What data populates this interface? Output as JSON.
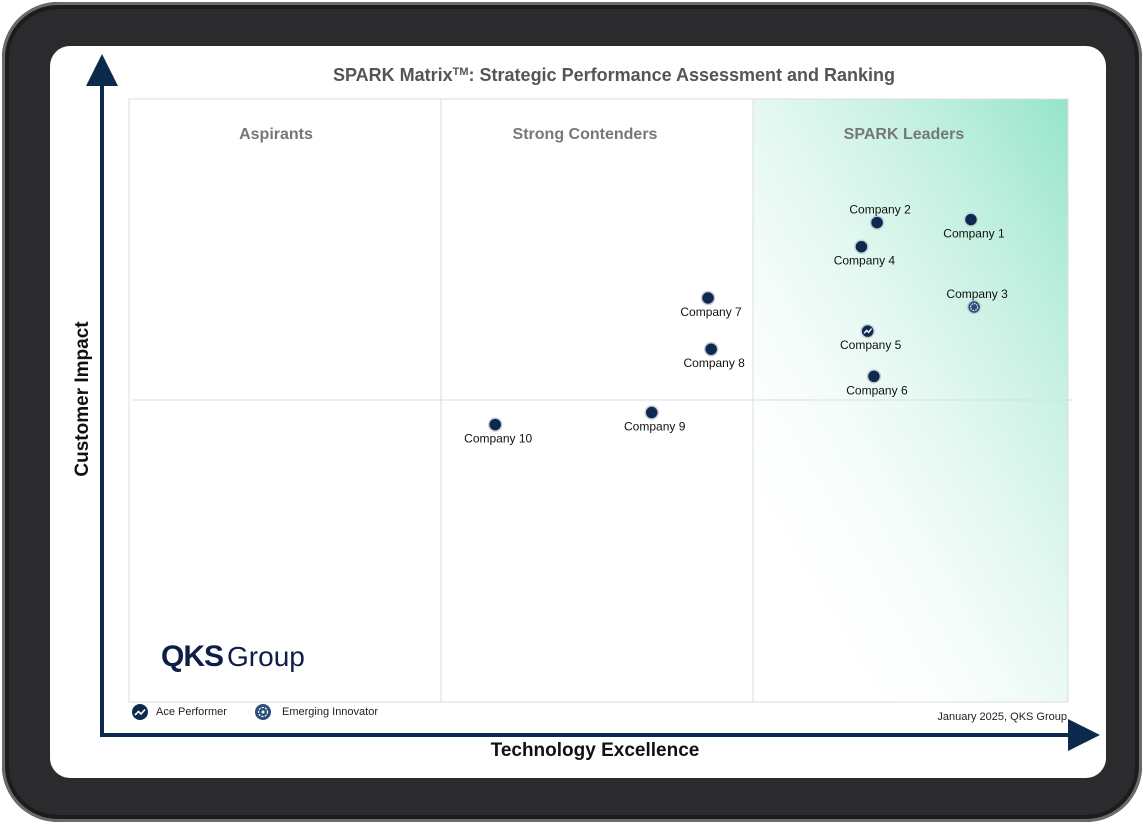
{
  "chart_data": {
    "type": "scatter",
    "title": "SPARK Matrix",
    "title_tm": "TM",
    "title_rest": ": Strategic Performance Assessment and Ranking",
    "xlabel": "Technology Excellence",
    "ylabel": "Customer Impact",
    "xlim": [
      0,
      3
    ],
    "ylim": [
      0,
      2
    ],
    "grid": true,
    "quadrants": [
      "Aspirants",
      "Strong Contenders",
      "SPARK Leaders"
    ],
    "points": [
      {
        "name": "Company 1",
        "x": 2.69,
        "y": 1.6,
        "badge": "none",
        "label_pos": "below"
      },
      {
        "name": "Company 2",
        "x": 2.39,
        "y": 1.59,
        "badge": "none",
        "label_pos": "above"
      },
      {
        "name": "Company 3",
        "x": 2.7,
        "y": 1.31,
        "badge": "emerging-innovator",
        "label_pos": "above"
      },
      {
        "name": "Company 4",
        "x": 2.34,
        "y": 1.51,
        "badge": "none",
        "label_pos": "below"
      },
      {
        "name": "Company 5",
        "x": 2.36,
        "y": 1.23,
        "badge": "ace-performer",
        "label_pos": "below"
      },
      {
        "name": "Company 6",
        "x": 2.38,
        "y": 1.08,
        "badge": "none",
        "label_pos": "below"
      },
      {
        "name": "Company 7",
        "x": 1.85,
        "y": 1.34,
        "badge": "none",
        "label_pos": "below"
      },
      {
        "name": "Company 8",
        "x": 1.86,
        "y": 1.17,
        "badge": "none",
        "label_pos": "below"
      },
      {
        "name": "Company 9",
        "x": 1.67,
        "y": 0.96,
        "badge": "none",
        "label_pos": "below"
      },
      {
        "name": "Company 10",
        "x": 1.17,
        "y": 0.92,
        "badge": "none",
        "label_pos": "below"
      }
    ],
    "legend": [
      {
        "key": "ace-performer",
        "label": "Ace Performer"
      },
      {
        "key": "emerging-innovator",
        "label": "Emerging Innovator"
      }
    ],
    "legend_position": "bottom-left",
    "source": "January 2025, QKS Group"
  },
  "logo": {
    "part1": "QKS",
    "part2": "Group"
  },
  "colors": {
    "point": "#0d2a4e",
    "axis": "#0d2a4e",
    "grid": "#dddddd",
    "leader_gradient": "#8fe3c8"
  }
}
